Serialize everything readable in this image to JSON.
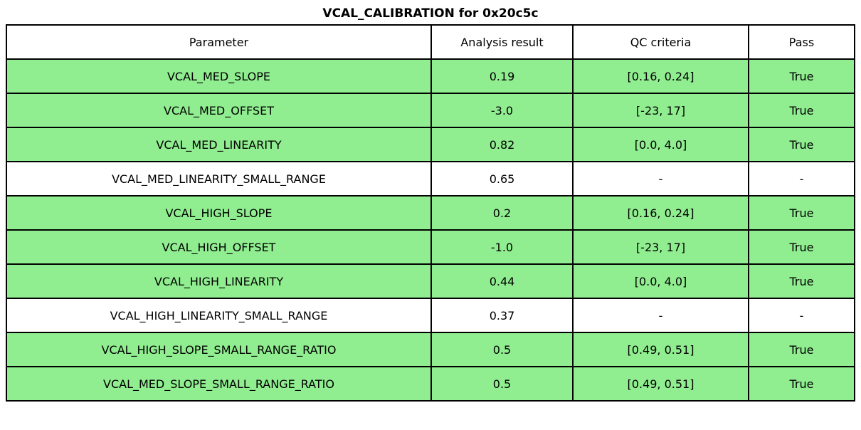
{
  "title": "VCAL_CALIBRATION for 0x20c5c",
  "colors": {
    "highlight_green": "#90EE90",
    "border": "#000000",
    "background": "#FFFFFF"
  },
  "table": {
    "headers": [
      "Parameter",
      "Analysis result",
      "QC criteria",
      "Pass"
    ],
    "rows": [
      {
        "parameter": "VCAL_MED_SLOPE",
        "result": "0.19",
        "criteria": "[0.16, 0.24]",
        "pass": "True",
        "highlighted": true
      },
      {
        "parameter": "VCAL_MED_OFFSET",
        "result": "-3.0",
        "criteria": "[-23, 17]",
        "pass": "True",
        "highlighted": true
      },
      {
        "parameter": "VCAL_MED_LINEARITY",
        "result": "0.82",
        "criteria": "[0.0, 4.0]",
        "pass": "True",
        "highlighted": true
      },
      {
        "parameter": "VCAL_MED_LINEARITY_SMALL_RANGE",
        "result": "0.65",
        "criteria": "-",
        "pass": "-",
        "highlighted": false
      },
      {
        "parameter": "VCAL_HIGH_SLOPE",
        "result": "0.2",
        "criteria": "[0.16, 0.24]",
        "pass": "True",
        "highlighted": true
      },
      {
        "parameter": "VCAL_HIGH_OFFSET",
        "result": "-1.0",
        "criteria": "[-23, 17]",
        "pass": "True",
        "highlighted": true
      },
      {
        "parameter": "VCAL_HIGH_LINEARITY",
        "result": "0.44",
        "criteria": "[0.0, 4.0]",
        "pass": "True",
        "highlighted": true
      },
      {
        "parameter": "VCAL_HIGH_LINEARITY_SMALL_RANGE",
        "result": "0.37",
        "criteria": "-",
        "pass": "-",
        "highlighted": false
      },
      {
        "parameter": "VCAL_HIGH_SLOPE_SMALL_RANGE_RATIO",
        "result": "0.5",
        "criteria": "[0.49, 0.51]",
        "pass": "True",
        "highlighted": true
      },
      {
        "parameter": "VCAL_MED_SLOPE_SMALL_RANGE_RATIO",
        "result": "0.5",
        "criteria": "[0.49, 0.51]",
        "pass": "True",
        "highlighted": true
      }
    ]
  }
}
